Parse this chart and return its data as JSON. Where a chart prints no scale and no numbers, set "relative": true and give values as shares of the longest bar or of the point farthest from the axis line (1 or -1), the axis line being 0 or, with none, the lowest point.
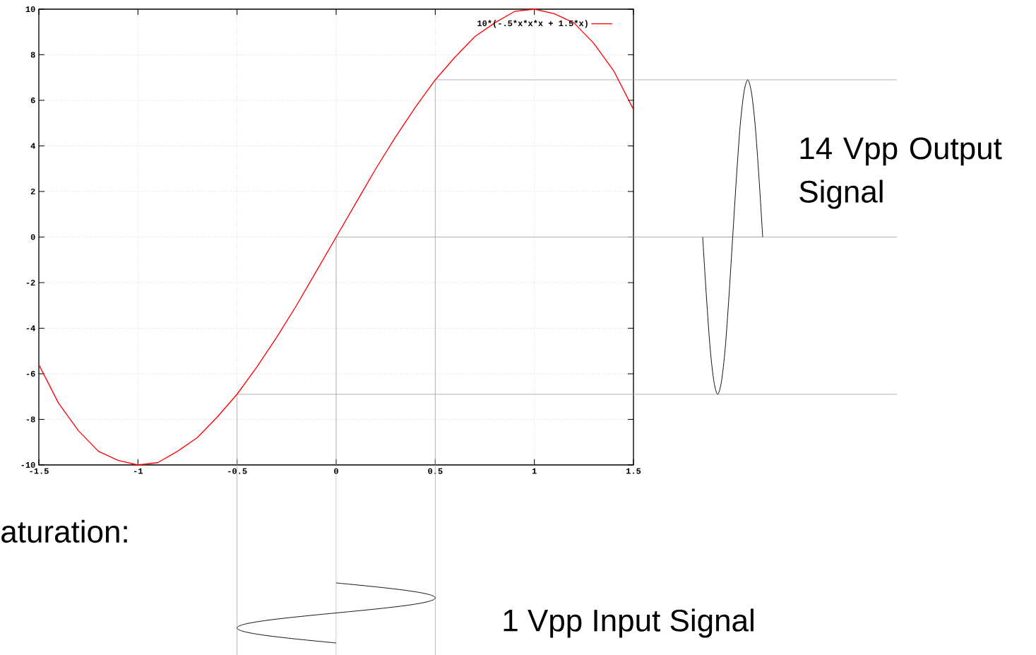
{
  "chart_data": [
    {
      "type": "line",
      "x": [
        -1.5,
        -1.4,
        -1.3,
        -1.2,
        -1.1,
        -1.0,
        -0.9,
        -0.8,
        -0.7,
        -0.6,
        -0.5,
        -0.4,
        -0.3,
        -0.2,
        -0.1,
        0,
        0.1,
        0.2,
        0.3,
        0.4,
        0.5,
        0.6,
        0.7,
        0.8,
        0.9,
        1.0,
        1.1,
        1.2,
        1.3,
        1.4,
        1.5
      ],
      "series": [
        {
          "name": "10*(-.5*x*x*x + 1.5*x)",
          "color": "#ff0000",
          "values": [
            -5.6,
            -7.3,
            -8.5,
            -9.4,
            -9.8,
            -10.0,
            -9.9,
            -9.4,
            -8.8,
            -7.9,
            -6.9,
            -5.7,
            -4.4,
            -3.0,
            -1.5,
            0,
            1.5,
            3.0,
            4.4,
            5.7,
            6.9,
            7.9,
            8.8,
            9.4,
            9.9,
            10.0,
            9.8,
            9.4,
            8.5,
            7.3,
            5.6
          ]
        }
      ],
      "xlim": [
        -1.5,
        1.5
      ],
      "ylim": [
        -10,
        10
      ],
      "xticks": [
        -1.5,
        -1,
        -0.5,
        0,
        0.5,
        1,
        1.5
      ],
      "yticks": [
        -10,
        -8,
        -6,
        -4,
        -2,
        0,
        2,
        4,
        6,
        8,
        10
      ],
      "grid": true,
      "legend": "top right",
      "marker": "none",
      "line_style": "solid",
      "ref_lines": [
        {
          "axis": "y",
          "value": 6.9,
          "color": "#a0a0a0"
        },
        {
          "axis": "y",
          "value": 0,
          "color": "#a0a0a0"
        },
        {
          "axis": "y",
          "value": -6.9,
          "color": "#a0a0a0"
        },
        {
          "axis": "x",
          "value": 0.5,
          "color": "#a0a0a0"
        },
        {
          "axis": "x",
          "value": 0,
          "color": "#a0a0a0"
        },
        {
          "axis": "x",
          "value": -0.5,
          "color": "#a0a0a0"
        }
      ],
      "annotations": [
        "1 Vpp Input Signal",
        "aturation:"
      ]
    },
    {
      "type": "line",
      "relative": true,
      "categories": [
        null,
        null,
        null,
        null,
        null,
        null,
        null,
        null,
        null,
        null,
        null,
        null,
        null,
        null,
        null,
        null,
        null
      ],
      "series": [
        {
          "color": "#000000",
          "values": [
            0,
            -0.38,
            -0.71,
            -0.92,
            -1,
            -0.92,
            -0.71,
            -0.38,
            0,
            0.38,
            0.71,
            0.92,
            1,
            0.92,
            0.71,
            0.38,
            0
          ]
        }
      ],
      "annotations": [
        "14 Vpp Output Signal"
      ]
    }
  ]
}
